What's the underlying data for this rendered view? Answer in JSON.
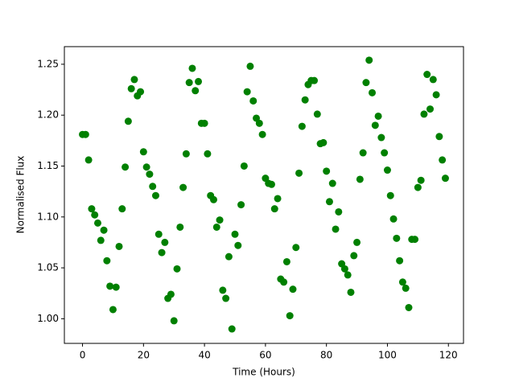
{
  "chart_data": {
    "type": "scatter",
    "xlabel": "Time (Hours)",
    "ylabel": "Normalised Flux",
    "color": "#008000",
    "x": [
      0,
      1,
      2,
      3,
      4,
      5,
      6,
      7,
      8,
      9,
      10,
      11,
      12,
      13,
      14,
      15,
      16,
      17,
      18,
      19,
      20,
      21,
      22,
      23,
      24,
      25,
      26,
      27,
      28,
      29,
      30,
      31,
      32,
      33,
      34,
      35,
      36,
      37,
      38,
      39,
      40,
      41,
      42,
      43,
      44,
      45,
      46,
      47,
      48,
      49,
      50,
      51,
      52,
      53,
      54,
      55,
      56,
      57,
      58,
      59,
      60,
      61,
      62,
      63,
      64,
      65,
      66,
      67,
      68,
      69,
      70,
      71,
      72,
      73,
      74,
      75,
      76,
      77,
      78,
      79,
      80,
      81,
      82,
      83,
      84,
      85,
      86,
      87,
      88,
      89,
      90,
      91,
      92,
      93,
      94,
      95,
      96,
      97,
      98,
      99,
      100,
      101,
      102,
      103,
      104,
      105,
      106,
      107,
      108,
      109,
      110,
      111,
      112,
      113,
      114,
      115,
      116,
      117,
      118,
      119
    ],
    "values": [
      1.181,
      1.181,
      1.156,
      1.108,
      1.102,
      1.094,
      1.077,
      1.087,
      1.057,
      1.032,
      1.009,
      1.031,
      1.071,
      1.108,
      1.149,
      1.194,
      1.226,
      1.235,
      1.219,
      1.223,
      1.164,
      1.149,
      1.142,
      1.13,
      1.121,
      1.083,
      1.065,
      1.075,
      1.02,
      1.024,
      0.998,
      1.049,
      1.09,
      1.129,
      1.162,
      1.232,
      1.246,
      1.224,
      1.233,
      1.192,
      1.192,
      1.162,
      1.121,
      1.117,
      1.09,
      1.097,
      1.028,
      1.02,
      1.061,
      0.99,
      1.083,
      1.072,
      1.112,
      1.15,
      1.223,
      1.248,
      1.214,
      1.197,
      1.192,
      1.181,
      1.138,
      1.133,
      1.132,
      1.108,
      1.118,
      1.039,
      1.036,
      1.056,
      1.003,
      1.029,
      1.07,
      1.143,
      1.189,
      1.215,
      1.23,
      1.234,
      1.234,
      1.201,
      1.172,
      1.173,
      1.145,
      1.115,
      1.133,
      1.088,
      1.105,
      1.054,
      1.049,
      1.043,
      1.026,
      1.062,
      1.075,
      1.137,
      1.163,
      1.232,
      1.254,
      1.222,
      1.19,
      1.199,
      1.178,
      1.163,
      1.146,
      1.121,
      1.098,
      1.079,
      1.057,
      1.036,
      1.03,
      1.011,
      1.078,
      1.078,
      1.129,
      1.136,
      1.201,
      1.24,
      1.206,
      1.235,
      1.22,
      1.179,
      1.156,
      1.138
    ],
    "xlim": [
      -5.95,
      124.95
    ],
    "xticks": [
      0,
      20,
      40,
      60,
      80,
      100,
      120
    ],
    "ylim": [
      0.9758,
      1.2673
    ],
    "yticks": [
      {
        "value": 1,
        "label": "1.00"
      },
      1.05,
      {
        "value": 1.1,
        "label": "1.10"
      },
      1.15,
      {
        "value": 1.2,
        "label": "1.20"
      },
      1.25
    ]
  }
}
